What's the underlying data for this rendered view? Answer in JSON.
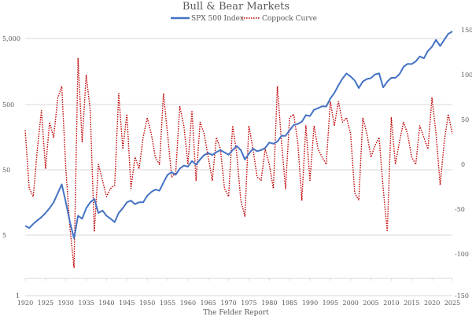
{
  "chart_data": {
    "type": "line",
    "title": "Bull & Bear Markets",
    "source": "The Felder Report",
    "legend_position": "top",
    "grid": true,
    "x": [
      1920,
      1921,
      1922,
      1923,
      1924,
      1925,
      1926,
      1927,
      1928,
      1929,
      1930,
      1931,
      1932,
      1933,
      1934,
      1935,
      1936,
      1937,
      1938,
      1939,
      1940,
      1941,
      1942,
      1943,
      1944,
      1945,
      1946,
      1947,
      1948,
      1949,
      1950,
      1951,
      1952,
      1953,
      1954,
      1955,
      1956,
      1957,
      1958,
      1959,
      1960,
      1961,
      1962,
      1963,
      1964,
      1965,
      1966,
      1967,
      1968,
      1969,
      1970,
      1971,
      1972,
      1973,
      1974,
      1975,
      1976,
      1977,
      1978,
      1979,
      1980,
      1981,
      1982,
      1983,
      1984,
      1985,
      1986,
      1987,
      1988,
      1989,
      1990,
      1991,
      1992,
      1993,
      1994,
      1995,
      1996,
      1997,
      1998,
      1999,
      2000,
      2001,
      2002,
      2003,
      2004,
      2005,
      2006,
      2007,
      2008,
      2009,
      2010,
      2011,
      2012,
      2013,
      2014,
      2015,
      2016,
      2017,
      2018,
      2019,
      2020,
      2021,
      2022,
      2023,
      2024,
      2025
    ],
    "x_ticks": [
      "1920",
      "1925",
      "1930",
      "1935",
      "1940",
      "1945",
      "1950",
      "1955",
      "1960",
      "1965",
      "1970",
      "1975",
      "1980",
      "1985",
      "1990",
      "1995",
      "2000",
      "2005",
      "2010",
      "2015",
      "2020",
      "2025"
    ],
    "left_axis": {
      "scale": "log",
      "ticks": [
        "5,000",
        "500",
        "50",
        "5",
        "1"
      ]
    },
    "right_axis": {
      "ticks": [
        "150",
        "100",
        "50",
        "0",
        "-50",
        "-100",
        "-150"
      ],
      "ylim": [
        -150,
        150
      ]
    },
    "series": [
      {
        "name": "SPX 500 Index",
        "axis": "left",
        "color": "#4472C4",
        "values": [
          7,
          6.5,
          7.5,
          8.5,
          9.5,
          11,
          13,
          16,
          22,
          30,
          16,
          8,
          4.5,
          10,
          9,
          13,
          16,
          18,
          11,
          12,
          10,
          9,
          8,
          11,
          13,
          16,
          17,
          15,
          16,
          16,
          20,
          23,
          25,
          24,
          32,
          42,
          46,
          42,
          52,
          58,
          56,
          68,
          60,
          72,
          84,
          90,
          84,
          93,
          100,
          92,
          85,
          100,
          115,
          100,
          72,
          88,
          105,
          96,
          100,
          108,
          130,
          125,
          135,
          165,
          165,
          200,
          240,
          250,
          270,
          340,
          330,
          410,
          435,
          465,
          460,
          610,
          740,
          970,
          1230,
          1470,
          1320,
          1150,
          880,
          1110,
          1210,
          1250,
          1420,
          1470,
          900,
          1100,
          1260,
          1260,
          1430,
          1850,
          2060,
          2040,
          2240,
          2670,
          2500,
          3230,
          3750,
          4770,
          3840,
          4770,
          5880,
          6400
        ]
      },
      {
        "name": "Coppock Curve",
        "axis": "right",
        "color": "#C00000",
        "values": [
          38,
          -27,
          -36,
          17,
          60,
          -5,
          47,
          30,
          74,
          87,
          -5,
          -71,
          -115,
          118,
          25,
          100,
          60,
          -75,
          0,
          -18,
          -36,
          -27,
          -23,
          79,
          17,
          56,
          -27,
          8,
          -5,
          30,
          52,
          34,
          8,
          0,
          79,
          34,
          -14,
          -10,
          65,
          43,
          0,
          60,
          -18,
          47,
          34,
          8,
          -18,
          30,
          17,
          -27,
          -36,
          43,
          12,
          -40,
          -58,
          43,
          17,
          -14,
          -18,
          17,
          0,
          -27,
          87,
          25,
          -27,
          52,
          56,
          25,
          -40,
          43,
          -18,
          43,
          17,
          8,
          0,
          70,
          43,
          70,
          47,
          52,
          34,
          -32,
          -40,
          52,
          34,
          8,
          21,
          30,
          -27,
          -75,
          52,
          0,
          25,
          47,
          34,
          8,
          0,
          43,
          30,
          17,
          74,
          34,
          -23,
          25,
          56,
          34
        ]
      }
    ]
  }
}
